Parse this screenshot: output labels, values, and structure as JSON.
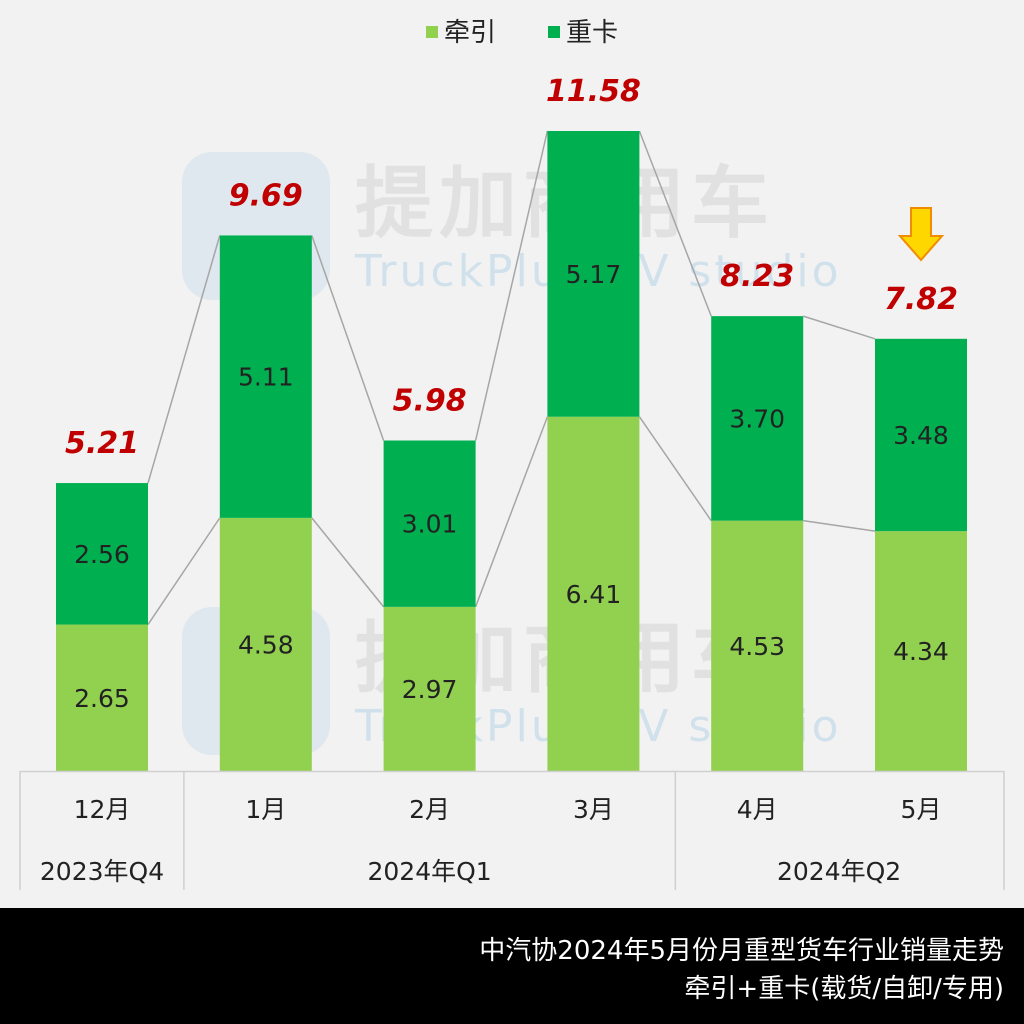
{
  "chart_data": {
    "type": "bar",
    "stacked": true,
    "categories": [
      "12月",
      "1月",
      "2月",
      "3月",
      "4月",
      "5月"
    ],
    "groups": [
      {
        "label": "2023年Q4",
        "span": 1
      },
      {
        "label": "2024年Q1",
        "span": 3
      },
      {
        "label": "2024年Q2",
        "span": 2
      }
    ],
    "series": [
      {
        "name": "牵引",
        "color": "#92d050",
        "values": [
          2.65,
          4.58,
          2.97,
          6.41,
          4.53,
          4.34
        ],
        "labels": [
          "2.65",
          "4.58",
          "2.97",
          "6.41",
          "4.53",
          "4.34"
        ]
      },
      {
        "name": "重卡",
        "color": "#00b050",
        "values": [
          2.56,
          5.11,
          3.01,
          5.17,
          3.7,
          3.48
        ],
        "labels": [
          "2.56",
          "5.11",
          "3.01",
          "5.17",
          "3.70",
          "3.48"
        ]
      }
    ],
    "totals": [
      "5.21",
      "9.69",
      "5.98",
      "11.58",
      "8.23",
      "7.82"
    ],
    "total_color": "#c00000",
    "legend_position": "top-center",
    "ylim": [
      0,
      11.58
    ],
    "grid": false,
    "annotation": "down-arrow-on-5月"
  },
  "watermark": {
    "cn": "提加商用车",
    "en": "TruckPlus CV studio"
  },
  "footer": {
    "line1": "中汽协2024年5月份月重型货车行业销量走势",
    "line2": "牵引+重卡(载货/自卸/专用)"
  }
}
